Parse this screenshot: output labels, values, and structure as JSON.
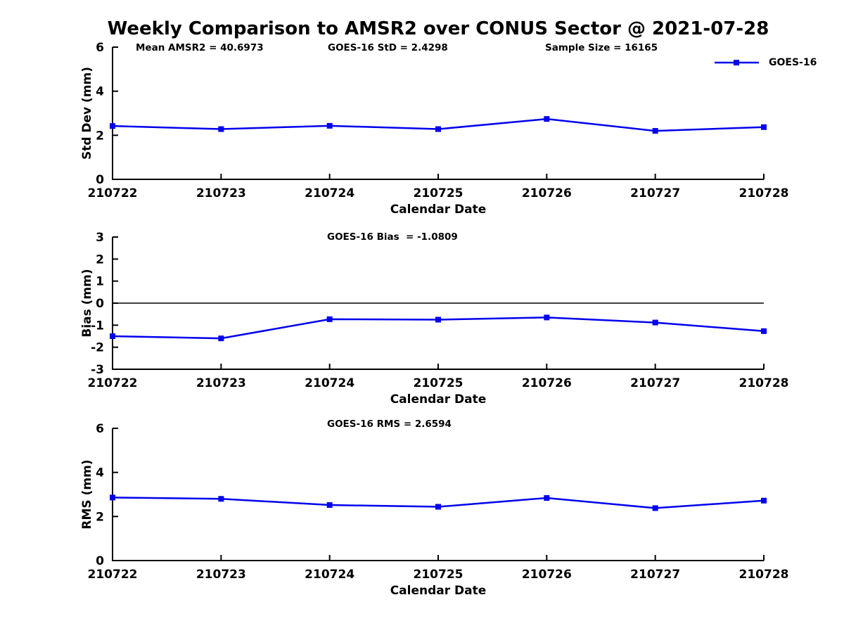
{
  "title": "Weekly Comparison to AMSR2 over CONUS Sector @ 2021-07-28",
  "legend": {
    "label": "GOES-16"
  },
  "colors": {
    "series": "#0000EE",
    "axis": "#000000",
    "background": "#FFFFFF"
  },
  "chart_data": [
    {
      "type": "line",
      "id": "std-dev-panel",
      "title": "",
      "annotations": [
        "Mean AMSR2 = 40.6973",
        "GOES-16 StD = 2.4298",
        "Sample Size = 16165"
      ],
      "categories": [
        "210722",
        "210723",
        "210724",
        "210725",
        "210726",
        "210727",
        "210728"
      ],
      "series": [
        {
          "name": "GOES-16",
          "values": [
            2.42,
            2.28,
            2.43,
            2.28,
            2.74,
            2.2,
            2.37
          ]
        }
      ],
      "xlabel": "Calendar Date",
      "ylabel": "Std Dev (mm)",
      "ylim": [
        0,
        6
      ],
      "yticks": [
        0,
        2,
        4,
        6
      ],
      "zero_line": false,
      "grid": false,
      "legend_position": "top-right"
    },
    {
      "type": "line",
      "id": "bias-panel",
      "title": "",
      "annotations": [
        "GOES-16 Bias  = -1.0809"
      ],
      "categories": [
        "210722",
        "210723",
        "210724",
        "210725",
        "210726",
        "210727",
        "210728"
      ],
      "series": [
        {
          "name": "GOES-16",
          "values": [
            -1.5,
            -1.6,
            -0.73,
            -0.75,
            -0.65,
            -0.88,
            -1.27
          ]
        }
      ],
      "xlabel": "Calendar Date",
      "ylabel": "Bias (mm)",
      "ylim": [
        -3,
        3
      ],
      "yticks": [
        3,
        2,
        1,
        0,
        -1,
        -2,
        -3
      ],
      "zero_line": true,
      "grid": false,
      "legend_position": "none"
    },
    {
      "type": "line",
      "id": "rms-panel",
      "title": "",
      "annotations": [
        "GOES-16 RMS = 2.6594"
      ],
      "categories": [
        "210722",
        "210723",
        "210724",
        "210725",
        "210726",
        "210727",
        "210728"
      ],
      "series": [
        {
          "name": "GOES-16",
          "values": [
            2.86,
            2.8,
            2.52,
            2.44,
            2.84,
            2.38,
            2.72
          ]
        }
      ],
      "xlabel": "Calendar Date",
      "ylabel": "RMS (mm)",
      "ylim": [
        0,
        6
      ],
      "yticks": [
        0,
        2,
        4,
        6
      ],
      "zero_line": false,
      "grid": false,
      "legend_position": "none"
    }
  ]
}
